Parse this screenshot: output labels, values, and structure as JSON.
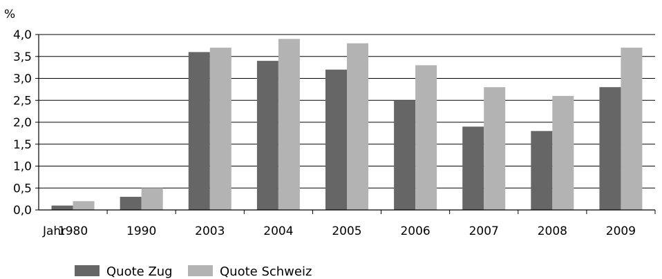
{
  "chart_data": {
    "type": "bar",
    "ylabel": "%",
    "xlabel_prefix": "Jahr",
    "categories": [
      "1980",
      "1990",
      "2003",
      "2004",
      "2005",
      "2006",
      "2007",
      "2008",
      "2009"
    ],
    "series": [
      {
        "name": "Quote Zug",
        "color": "#666666",
        "values": [
          0.1,
          0.3,
          3.6,
          3.4,
          3.2,
          2.5,
          1.9,
          1.8,
          2.8
        ]
      },
      {
        "name": "Quote Schweiz",
        "color": "#b3b3b3",
        "values": [
          0.2,
          0.5,
          3.7,
          3.9,
          3.8,
          3.3,
          2.8,
          2.6,
          3.7
        ]
      }
    ],
    "ylim": [
      0,
      4.0
    ],
    "yticks": [
      "0,0",
      "0,5",
      "1,0",
      "1,5",
      "2,0",
      "2,5",
      "3,0",
      "3,5",
      "4,0"
    ],
    "grid": true,
    "legend": "bottom-left"
  }
}
